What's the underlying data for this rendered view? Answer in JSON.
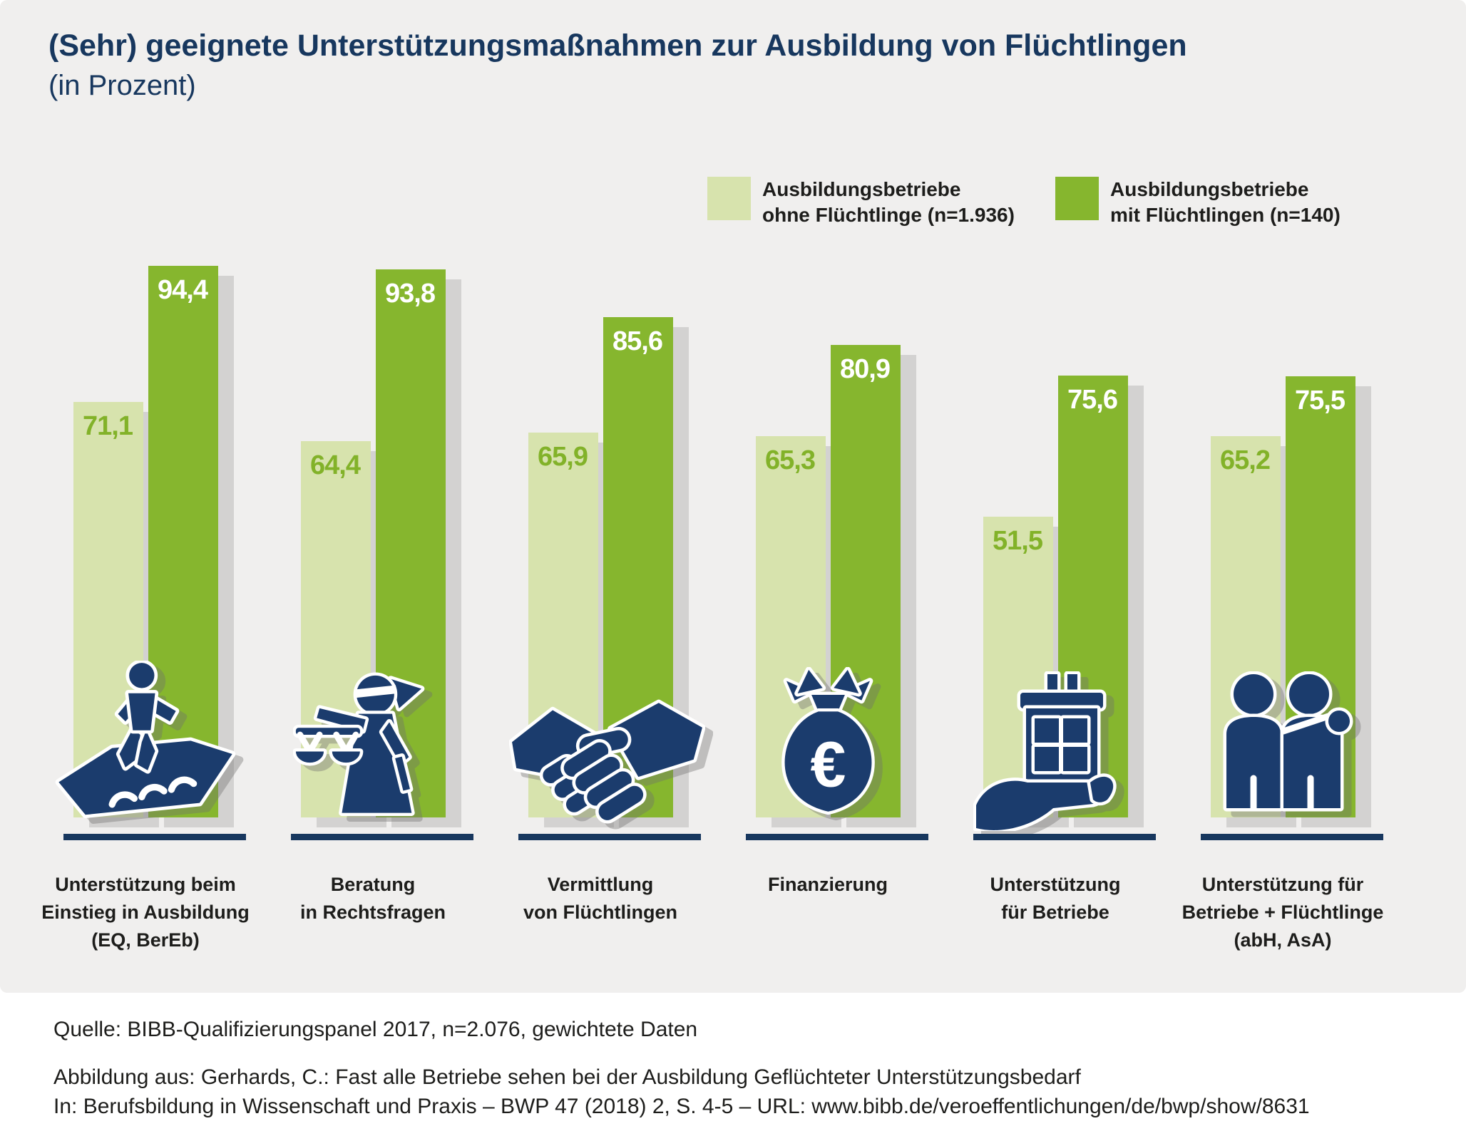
{
  "title": {
    "line1": "(Sehr) geeignete Unterstützungsmaßnahmen zur Ausbildung von Flüchtlingen",
    "line2": "(in Prozent)"
  },
  "legend": [
    {
      "label_lines": [
        "Ausbildungsbetriebe",
        "ohne Flüchtlinge (n=1.936)"
      ],
      "color": "#d7e3ad"
    },
    {
      "label_lines": [
        "Ausbildungsbetriebe",
        "mit Flüchtlingen (n=140)"
      ],
      "color": "#86b62e"
    }
  ],
  "chart_data": {
    "type": "bar",
    "title": "(Sehr) geeignete Unterstützungsmaßnahmen zur Ausbildung von Flüchtlingen (in Prozent)",
    "unit": "Prozent",
    "ylim": [
      0,
      100
    ],
    "grid": false,
    "legend_position": "top-right",
    "categories": [
      "Unterstützung beim Einstieg in Ausbildung (EQ, BerEb)",
      "Beratung in Rechtsfragen",
      "Vermittlung von Flüchtlingen",
      "Finanzierung",
      "Unterstützung für Betriebe",
      "Unterstützung für Betriebe + Flüchtlinge (abH, AsA)"
    ],
    "series": [
      {
        "name": "Ausbildungsbetriebe ohne Flüchtlinge (n=1.936)",
        "color": "#d7e3ad",
        "values": [
          71.1,
          64.4,
          65.9,
          65.3,
          51.5,
          65.2
        ]
      },
      {
        "name": "Ausbildungsbetriebe mit Flüchtlingen (n=140)",
        "color": "#86b62e",
        "values": [
          94.4,
          93.8,
          85.6,
          80.9,
          75.6,
          75.5
        ]
      }
    ]
  },
  "groups": [
    {
      "category_lines": [
        "Unterstützung beim",
        "Einstieg in Ausbildung",
        "(EQ, BerEb)"
      ],
      "ohne_label": "71,1",
      "mit_label": "94,4",
      "icon": "person-crossing-bridge"
    },
    {
      "category_lines": [
        "Beratung",
        "in Rechtsfragen"
      ],
      "ohne_label": "64,4",
      "mit_label": "93,8",
      "icon": "justice-scales"
    },
    {
      "category_lines": [
        "Vermittlung",
        "von Flüchtlingen"
      ],
      "ohne_label": "65,9",
      "mit_label": "85,6",
      "icon": "handshake"
    },
    {
      "category_lines": [
        "Finanzierung"
      ],
      "ohne_label": "65,3",
      "mit_label": "80,9",
      "icon": "money-bag-euro"
    },
    {
      "category_lines": [
        "Unterstützung",
        "für Betriebe"
      ],
      "ohne_label": "51,5",
      "mit_label": "75,6",
      "icon": "hand-holding-building"
    },
    {
      "category_lines": [
        "Unterstützung für",
        "Betriebe + Flüchtlinge",
        "(abH, AsA)"
      ],
      "ohne_label": "65,2",
      "mit_label": "75,5",
      "icon": "two-people"
    }
  ],
  "icons": {
    "euro_symbol": "€"
  },
  "footer": {
    "source": "Quelle: BIBB-Qualifizierungspanel 2017, n=2.076, gewichtete Daten",
    "attribution_line1": "Abbildung aus: Gerhards, C.: Fast alle Betriebe sehen bei der Ausbildung Geflüchteter Unterstützungsbedarf",
    "attribution_line2": "In: Berufsbildung in Wissenschaft und Praxis – BWP 47 (2018) 2, S. 4-5 – URL: www.bibb.de/veroeffentlichungen/de/bwp/show/8631"
  },
  "colors": {
    "background_panel": "#f0efee",
    "page_background": "#ffffff",
    "bar_light_green": "#d7e3ad",
    "bar_dark_green": "#86b62e",
    "bar_shadow_gray": "#d3d2d1",
    "navy": "#17375e",
    "icon_navy": "#1b3c6d",
    "text_black": "#1d1d1b",
    "value_label_green": "#82b229",
    "value_label_white": "#ffffff"
  }
}
